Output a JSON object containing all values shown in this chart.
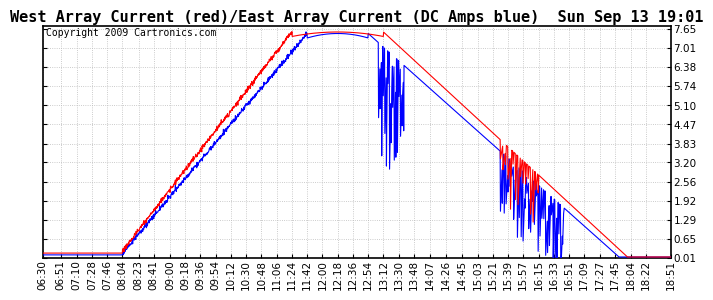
{
  "title": "West Array Current (red)/East Array Current (DC Amps blue)  Sun Sep 13 19:01",
  "copyright": "Copyright 2009 Cartronics.com",
  "yticks": [
    0.01,
    0.65,
    1.29,
    1.92,
    2.56,
    3.2,
    3.83,
    4.47,
    5.1,
    5.74,
    6.38,
    7.01,
    7.65
  ],
  "ylim": [
    0.0,
    7.75
  ],
  "xlabel_times": [
    "06:30",
    "06:51",
    "07:10",
    "07:28",
    "07:46",
    "08:04",
    "08:23",
    "08:41",
    "09:00",
    "09:18",
    "09:36",
    "09:54",
    "10:12",
    "10:30",
    "10:48",
    "11:06",
    "11:24",
    "11:42",
    "12:00",
    "12:18",
    "12:36",
    "12:54",
    "13:12",
    "13:30",
    "13:48",
    "14:07",
    "14:26",
    "14:45",
    "15:03",
    "15:21",
    "15:39",
    "15:57",
    "16:15",
    "16:33",
    "16:51",
    "17:09",
    "17:27",
    "17:45",
    "18:04",
    "18:22",
    "18:51"
  ],
  "background_color": "#ffffff",
  "grid_color": "#bbbbbb",
  "line_red_color": "#ff0000",
  "line_blue_color": "#0000ff",
  "title_fontsize": 11,
  "copyright_fontsize": 7,
  "tick_fontsize": 7.5
}
